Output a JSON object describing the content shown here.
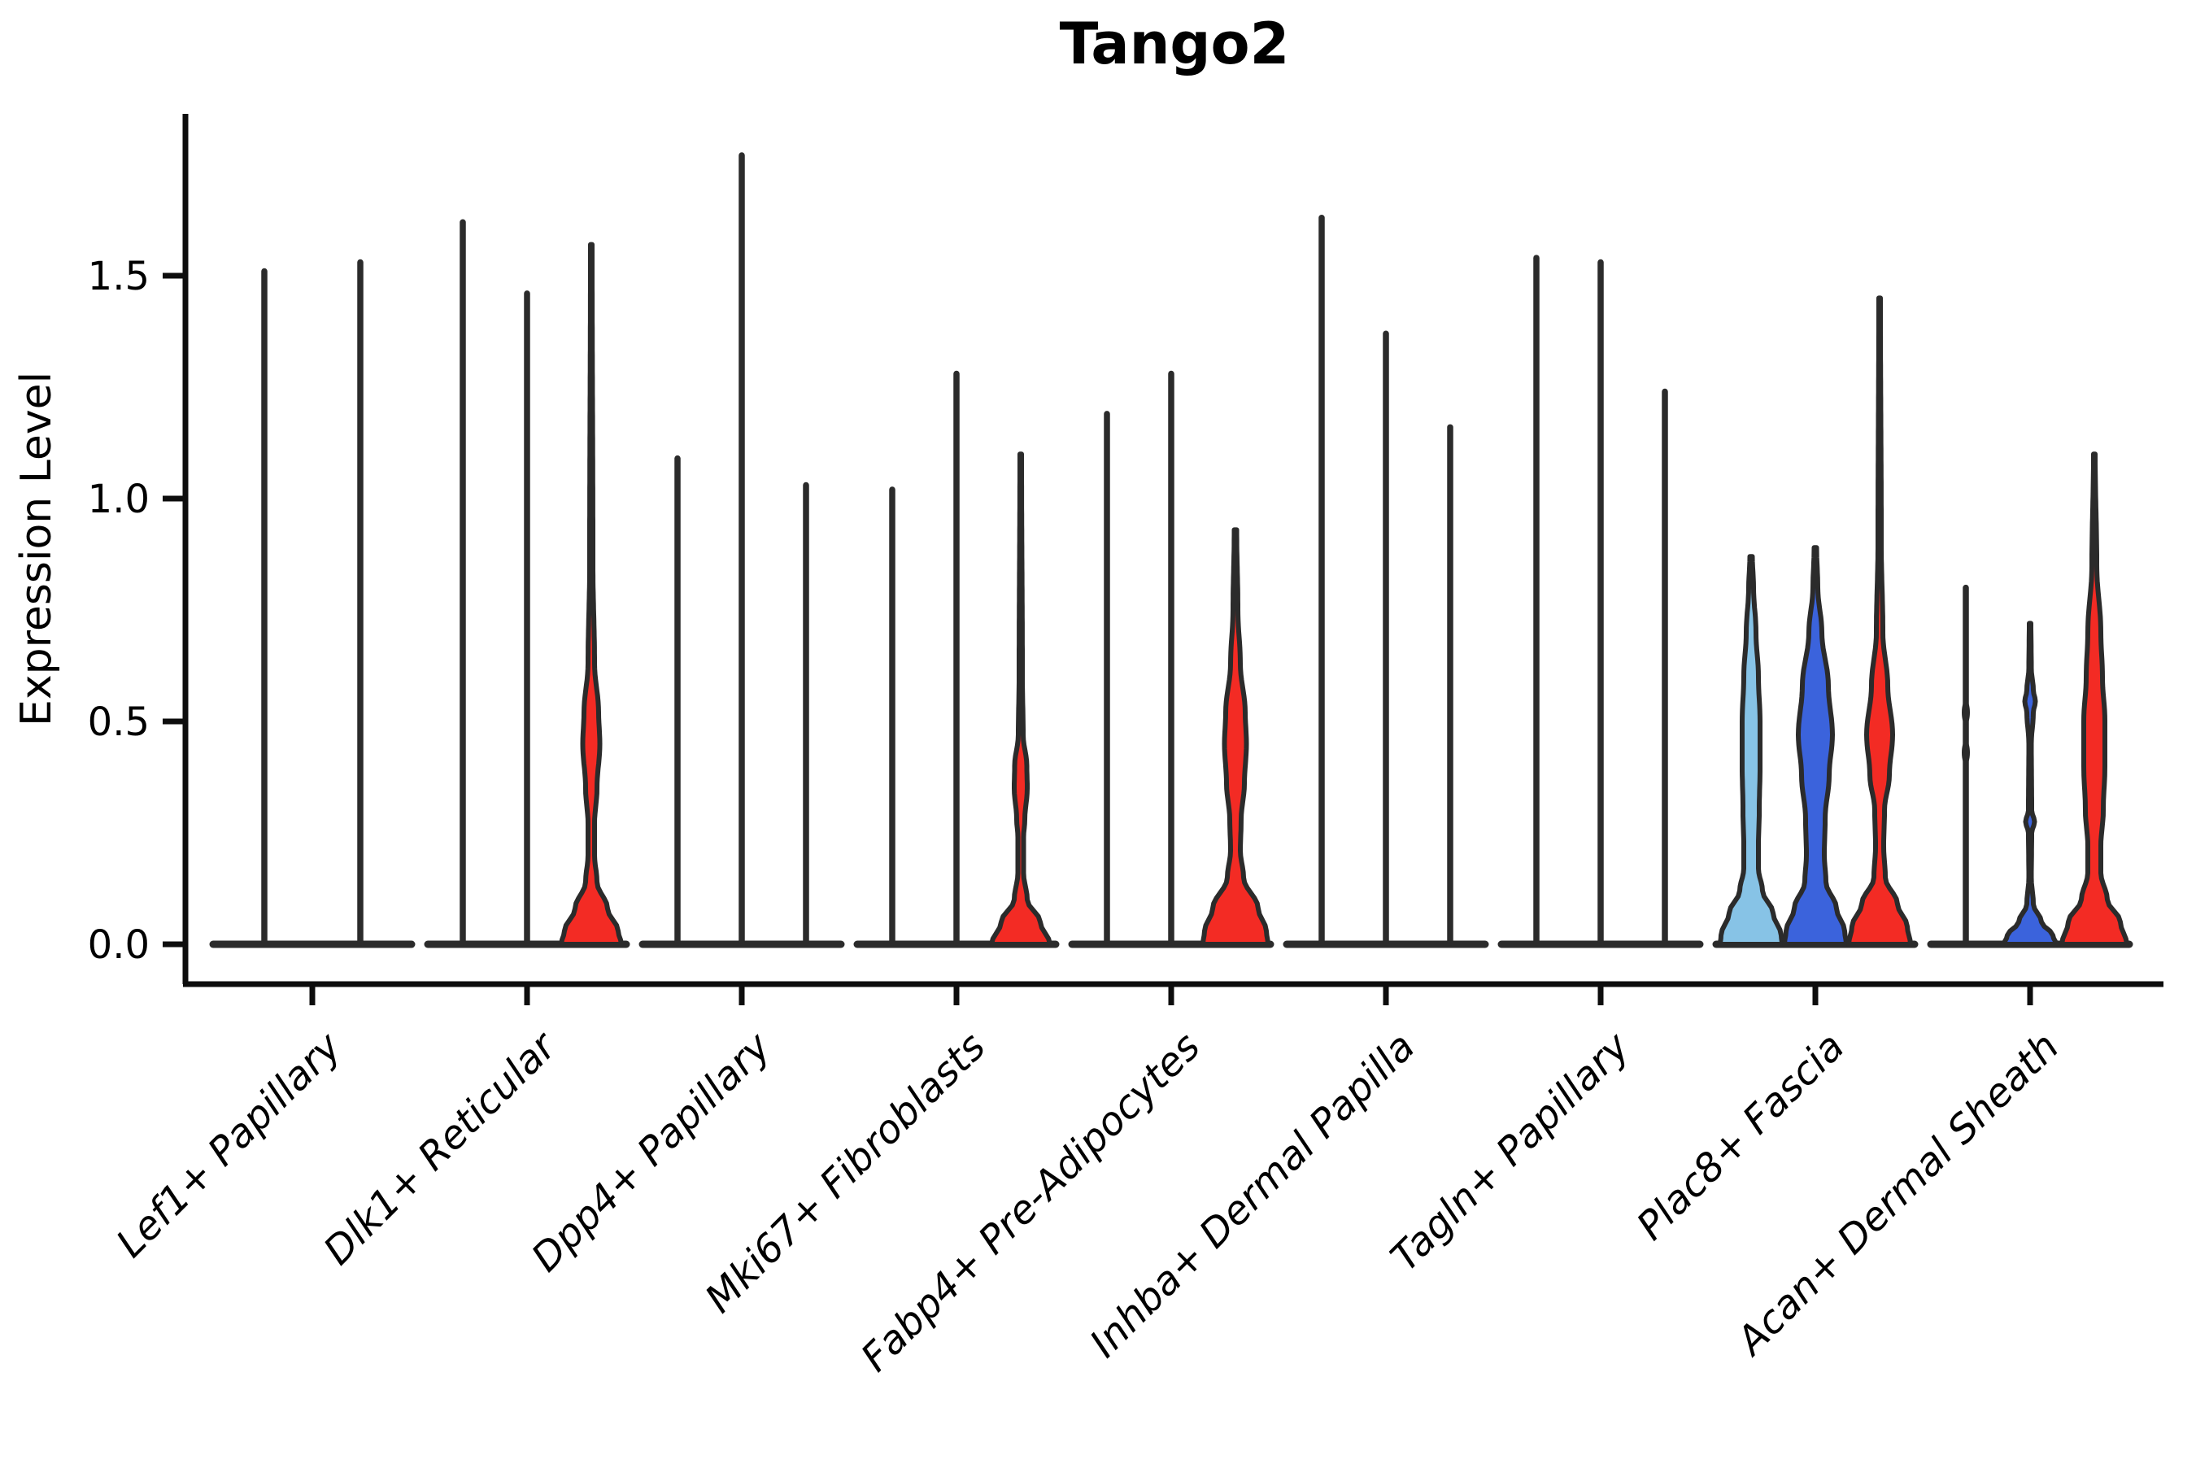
{
  "chart_data": {
    "type": "violin",
    "title": "Tango2",
    "xlabel": "",
    "ylabel": "Expression Level",
    "ylim": [
      0,
      1.86
    ],
    "yticks": [
      "0.0",
      "0.5",
      "1.0",
      "1.5"
    ],
    "ytick_values": [
      0.0,
      0.5,
      1.0,
      1.5
    ],
    "grid": false,
    "legend": "none",
    "colors": {
      "outline": "#2b2b2b",
      "spike": "#2b2b2b",
      "axis": "#0d0d0d",
      "lightblue": "#87C3E6",
      "blue": "#3B63DC",
      "red": "#F32B24"
    },
    "categories": [
      "Lef1+ Papillary",
      "Dlk1+ Reticular",
      "Dpp4+ Papillary",
      "Mki67+ Fibroblasts",
      "Fabp4+ Pre-Adipocytes",
      "Inhba+ Dermal Papilla",
      "Tagln+ Papillary",
      "Plac8+ Fascia",
      "Acan+ Dermal Sheath"
    ],
    "groups": [
      {
        "label": "Lef1+ Papillary",
        "violins": [
          {
            "offset": -59,
            "max": 1.51,
            "style": "spike",
            "color_key": "spike"
          },
          {
            "offset": 59,
            "max": 1.53,
            "style": "spike",
            "color_key": "spike"
          }
        ]
      },
      {
        "label": "Dlk1+ Reticular",
        "violins": [
          {
            "offset": -79,
            "max": 1.62,
            "style": "spike",
            "color_key": "spike"
          },
          {
            "offset": 0,
            "max": 1.46,
            "style": "spike",
            "color_key": "spike"
          },
          {
            "offset": 79,
            "max": 1.57,
            "style": "filled",
            "color_key": "red",
            "profile": [
              [
                1.57,
                1
              ],
              [
                0.85,
                2
              ],
              [
                0.63,
                4
              ],
              [
                0.52,
                9
              ],
              [
                0.45,
                10.5
              ],
              [
                0.35,
                7
              ],
              [
                0.27,
                4
              ],
              [
                0.2,
                4
              ],
              [
                0.14,
                7
              ],
              [
                0.08,
                20
              ],
              [
                0.03,
                33
              ],
              [
                0,
                37
              ]
            ]
          }
        ]
      },
      {
        "label": "Dpp4+ Papillary",
        "violins": [
          {
            "offset": -79,
            "max": 1.09,
            "style": "spike",
            "color_key": "spike"
          },
          {
            "offset": 0,
            "max": 1.77,
            "style": "spike",
            "color_key": "spike"
          },
          {
            "offset": 79,
            "max": 1.03,
            "style": "spike",
            "color_key": "spike"
          }
        ]
      },
      {
        "label": "Mki67+ Fibroblasts",
        "violins": [
          {
            "offset": -79,
            "max": 1.02,
            "style": "spike",
            "color_key": "spike"
          },
          {
            "offset": 0,
            "max": 1.28,
            "style": "spike",
            "color_key": "spike"
          },
          {
            "offset": 79,
            "max": 1.1,
            "style": "filled",
            "color_key": "red",
            "profile": [
              [
                1.1,
                1
              ],
              [
                0.6,
                2
              ],
              [
                0.47,
                3
              ],
              [
                0.4,
                7.5
              ],
              [
                0.35,
                8
              ],
              [
                0.28,
                5
              ],
              [
                0.24,
                3.5
              ],
              [
                0.16,
                3.5
              ],
              [
                0.1,
                8
              ],
              [
                0.05,
                24
              ],
              [
                0,
                36
              ]
            ]
          }
        ]
      },
      {
        "label": "Fabp4+ Pre-Adipocytes",
        "violins": [
          {
            "offset": -79,
            "max": 1.19,
            "style": "spike",
            "color_key": "spike"
          },
          {
            "offset": 0,
            "max": 1.28,
            "style": "spike",
            "color_key": "spike"
          },
          {
            "offset": 79,
            "max": 0.93,
            "style": "filled",
            "color_key": "red",
            "profile": [
              [
                0.93,
                1.5
              ],
              [
                0.75,
                3
              ],
              [
                0.63,
                6
              ],
              [
                0.52,
                12
              ],
              [
                0.45,
                13.5
              ],
              [
                0.36,
                11
              ],
              [
                0.28,
                7
              ],
              [
                0.21,
                6
              ],
              [
                0.15,
                10
              ],
              [
                0.08,
                28
              ],
              [
                0.03,
                38
              ],
              [
                0,
                40
              ]
            ]
          }
        ]
      },
      {
        "label": "Inhba+ Dermal Papilla",
        "violins": [
          {
            "offset": -79,
            "max": 1.63,
            "style": "spike",
            "color_key": "spike"
          },
          {
            "offset": 0,
            "max": 1.37,
            "style": "spike",
            "color_key": "spike"
          },
          {
            "offset": 79,
            "max": 1.16,
            "style": "spike",
            "color_key": "spike"
          }
        ]
      },
      {
        "label": "Tagln+ Papillary",
        "violins": [
          {
            "offset": -79,
            "max": 1.54,
            "style": "spike",
            "color_key": "spike"
          },
          {
            "offset": 0,
            "max": 1.53,
            "style": "spike",
            "color_key": "spike"
          },
          {
            "offset": 79,
            "max": 1.24,
            "style": "spike",
            "color_key": "spike"
          }
        ]
      },
      {
        "label": "Plac8+ Fascia",
        "violins": [
          {
            "offset": -79,
            "max": 0.87,
            "style": "filled",
            "color_key": "lightblue",
            "profile": [
              [
                0.87,
                1.5
              ],
              [
                0.8,
                3
              ],
              [
                0.7,
                6
              ],
              [
                0.6,
                9
              ],
              [
                0.5,
                11
              ],
              [
                0.4,
                11
              ],
              [
                0.3,
                10
              ],
              [
                0.22,
                9
              ],
              [
                0.17,
                9
              ],
              [
                0.12,
                14
              ],
              [
                0.07,
                27
              ],
              [
                0.02,
                37
              ],
              [
                0,
                38
              ]
            ]
          },
          {
            "offset": 0,
            "max": 0.89,
            "style": "filled",
            "color_key": "blue",
            "profile": [
              [
                0.89,
                1.5
              ],
              [
                0.8,
                3
              ],
              [
                0.7,
                8
              ],
              [
                0.58,
                16
              ],
              [
                0.47,
                21
              ],
              [
                0.38,
                17
              ],
              [
                0.28,
                12
              ],
              [
                0.2,
                11
              ],
              [
                0.14,
                13
              ],
              [
                0.08,
                26
              ],
              [
                0.03,
                36
              ],
              [
                0,
                38
              ]
            ]
          },
          {
            "offset": 79,
            "max": 1.45,
            "style": "filled",
            "color_key": "red",
            "profile": [
              [
                1.45,
                1
              ],
              [
                0.9,
                2
              ],
              [
                0.7,
                4
              ],
              [
                0.58,
                10
              ],
              [
                0.47,
                16
              ],
              [
                0.38,
                12
              ],
              [
                0.3,
                6
              ],
              [
                0.22,
                5
              ],
              [
                0.15,
                7
              ],
              [
                0.09,
                22
              ],
              [
                0.04,
                34
              ],
              [
                0,
                38
              ]
            ]
          }
        ]
      },
      {
        "label": "Acan+ Dermal Sheath",
        "violins": [
          {
            "offset": -79,
            "max": 0.8,
            "style": "spike",
            "color_key": "spike",
            "blips": [
              0.52,
              0.43
            ]
          },
          {
            "offset": 0,
            "max": 0.72,
            "style": "filled",
            "color_key": "blue",
            "profile": [
              [
                0.72,
                1
              ],
              [
                0.62,
                1.5
              ],
              [
                0.57,
                4
              ],
              [
                0.545,
                6.5
              ],
              [
                0.52,
                4
              ],
              [
                0.45,
                1.5
              ],
              [
                0.3,
                2
              ],
              [
                0.275,
                5.5
              ],
              [
                0.25,
                2
              ],
              [
                0.15,
                1.5
              ],
              [
                0.09,
                4
              ],
              [
                0.05,
                14
              ],
              [
                0.02,
                28
              ],
              [
                0,
                32
              ]
            ]
          },
          {
            "offset": 79,
            "max": 1.1,
            "style": "filled",
            "color_key": "red",
            "profile": [
              [
                1.1,
                1
              ],
              [
                0.85,
                3
              ],
              [
                0.7,
                8
              ],
              [
                0.6,
                10
              ],
              [
                0.5,
                13
              ],
              [
                0.4,
                13
              ],
              [
                0.3,
                11
              ],
              [
                0.22,
                8
              ],
              [
                0.16,
                8
              ],
              [
                0.1,
                16
              ],
              [
                0.05,
                32
              ],
              [
                0,
                40
              ]
            ]
          }
        ]
      }
    ]
  }
}
